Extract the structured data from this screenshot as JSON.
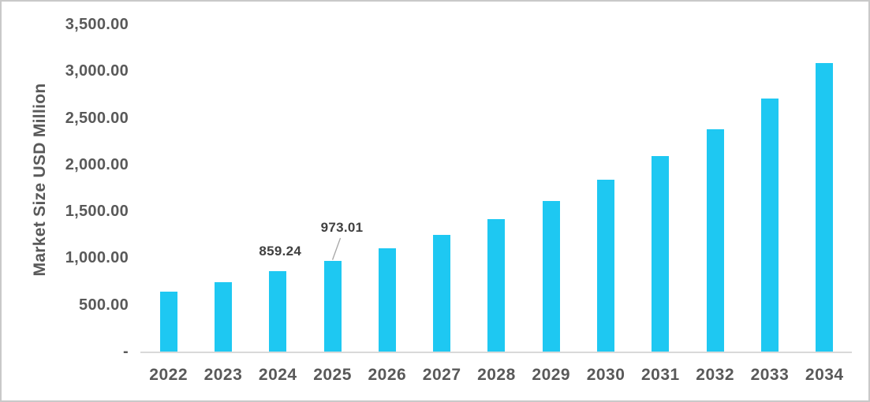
{
  "chart_data": {
    "type": "bar",
    "title": "",
    "xlabel": "",
    "ylabel": "Market Size USD Million",
    "categories": [
      "2022",
      "2023",
      "2024",
      "2025",
      "2026",
      "2027",
      "2028",
      "2029",
      "2030",
      "2031",
      "2032",
      "2033",
      "2034"
    ],
    "values": [
      640,
      742,
      859.24,
      973.01,
      1108,
      1249,
      1420,
      1613,
      1841,
      2094,
      2376,
      2707,
      3084
    ],
    "ylim": [
      0,
      3500
    ],
    "ytick_step": 500,
    "ytick_labels_bottom_to_top": [
      "-",
      "500.00",
      "1,000.00",
      "1,500.00",
      "2,000.00",
      "2,500.00",
      "3,000.00",
      "3,500.00"
    ],
    "grid": "off",
    "legend": "none",
    "data_labels": [
      {
        "category": "2024",
        "text": "859.24",
        "leader_line": false
      },
      {
        "category": "2025",
        "text": "973.01",
        "leader_line": true
      }
    ],
    "colors": {
      "bar": "#1ec8f2",
      "axis_line": "#d9d9d9",
      "tick_text": "#595959",
      "label_text": "#404040",
      "leader_line": "#a6a6a6",
      "frame_border": "#c9c9c9"
    }
  }
}
